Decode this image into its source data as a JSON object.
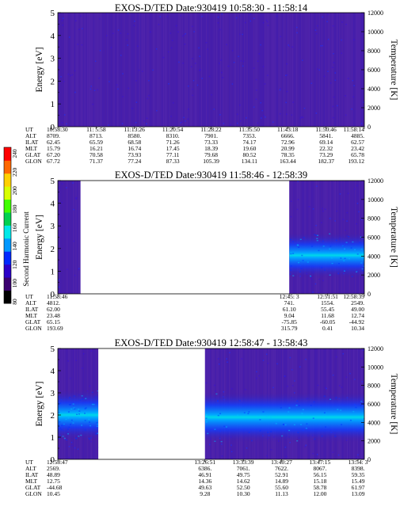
{
  "colorbar": {
    "label": "Second Harmonic Current",
    "ticks": [
      "80",
      "100",
      "120",
      "140",
      "160",
      "180",
      "200",
      "220",
      "240"
    ],
    "colors": [
      "#000000",
      "#3a0070",
      "#2b00c8",
      "#0028ff",
      "#0098ff",
      "#00e8e8",
      "#00d050",
      "#40ff00",
      "#d8ff00",
      "#ffd000",
      "#ff6800",
      "#ff0000"
    ]
  },
  "chart_data": [
    {
      "type": "heatmap",
      "title": "EXOS-D/TED   Date:930419   10:58:30 - 11:58:14",
      "ylabel": "Energy [eV]",
      "ylabel_right": "Temperature [K]",
      "ylim": [
        0,
        5
      ],
      "yticks": [
        "0",
        "1",
        "2",
        "3",
        "4",
        "5"
      ],
      "ylim_right": [
        0,
        12000
      ],
      "yticks_right": [
        "0",
        "2000",
        "4000",
        "6000",
        "8000",
        "10000",
        "12000"
      ],
      "data_spans": [
        [
          0,
          1
        ]
      ],
      "background": "#4a20a8",
      "ephemeris": {
        "labels": [
          "UT",
          "ALT",
          "ILAT",
          "MLT",
          "GLAT",
          "GLON"
        ],
        "columns": [
          {
            "UT": "10:58:30",
            "ALT": "8709.",
            "ILAT": "62.45",
            "MLT": "15.79",
            "GLAT": "67.20",
            "GLON": "67.72"
          },
          {
            "UT": "11: 5:58",
            "ALT": "8713.",
            "ILAT": "65.59",
            "MLT": "16.21",
            "GLAT": "70.58",
            "GLON": "71.37"
          },
          {
            "UT": "11:13:26",
            "ALT": "8580.",
            "ILAT": "68.58",
            "MLT": "16.74",
            "GLAT": "73.93",
            "GLON": "77.24"
          },
          {
            "UT": "11:20:54",
            "ALT": "8310.",
            "ILAT": "71.26",
            "MLT": "17.45",
            "GLAT": "77.11",
            "GLON": "87.33"
          },
          {
            "UT": "11:28:22",
            "ALT": "7901.",
            "ILAT": "73.33",
            "MLT": "18.39",
            "GLAT": "79.68",
            "GLON": "105.39"
          },
          {
            "UT": "11:35:50",
            "ALT": "7353.",
            "ILAT": "74.17",
            "MLT": "19.60",
            "GLAT": "80.52",
            "GLON": "134.11"
          },
          {
            "UT": "11:43:18",
            "ALT": "6666.",
            "ILAT": "72.96",
            "MLT": "20.99",
            "GLAT": "78.35",
            "GLON": "163.44"
          },
          {
            "UT": "11:50:46",
            "ALT": "5841.",
            "ILAT": "69.14",
            "MLT": "22.32",
            "GLAT": "73.29",
            "GLON": "182.37"
          },
          {
            "UT": "11:58:14",
            "ALT": "4885.",
            "ILAT": "62.57",
            "MLT": "23.42",
            "GLAT": "65.78",
            "GLON": "193.12"
          }
        ]
      }
    },
    {
      "type": "heatmap",
      "title": "EXOS-D/TED   Date:930419   11:58:46 - 12:58:39",
      "ylabel": "Energy [eV]",
      "ylabel_right": "Temperature [K]",
      "ylim": [
        0,
        5
      ],
      "yticks": [
        "0",
        "1",
        "2",
        "3",
        "4",
        "5"
      ],
      "ylim_right": [
        0,
        12000
      ],
      "yticks_right": [
        "0",
        "2000",
        "4000",
        "6000",
        "8000",
        "10000",
        "12000"
      ],
      "data_spans": [
        [
          0,
          0.074
        ],
        [
          0.755,
          1
        ]
      ],
      "background": "#4a20a8",
      "band": {
        "span": [
          0.755,
          1
        ],
        "energy_center": 1.7,
        "energy_width": 0.7
      },
      "ephemeris": {
        "labels": [
          "UT",
          "ALT",
          "ILAT",
          "MLT",
          "GLAT",
          "GLON"
        ],
        "columns": [
          {
            "UT": "11:58:46",
            "ALT": "4812.",
            "ILAT": "62.00",
            "MLT": "23.48",
            "GLAT": "65.15",
            "GLON": "193.69"
          },
          {
            "UT": "12:45: 3",
            "ALT": "741.",
            "ILAT": "61.10",
            "MLT": "9.04",
            "GLAT": "-75.85",
            "GLON": "315.79"
          },
          {
            "UT": "12:51:51",
            "ALT": "1554.",
            "ILAT": "55.45",
            "MLT": "11.68",
            "GLAT": "-60.05",
            "GLON": "0.41"
          },
          {
            "UT": "12:58:39",
            "ALT": "2549.",
            "ILAT": "49.00",
            "MLT": "12.74",
            "GLAT": "-44.92",
            "GLON": "10.34"
          }
        ]
      }
    },
    {
      "type": "heatmap",
      "title": "EXOS-D/TED   Date:930419   12:58:47 - 13:58:43",
      "ylabel": "Energy [eV]",
      "ylabel_right": "Temperature [K]",
      "ylim": [
        0,
        5
      ],
      "yticks": [
        "0",
        "1",
        "2",
        "3",
        "4",
        "5"
      ],
      "ylim_right": [
        0,
        12000
      ],
      "yticks_right": [
        "0",
        "2000",
        "4000",
        "6000",
        "8000",
        "10000",
        "12000"
      ],
      "data_spans": [
        [
          0,
          0.132
        ],
        [
          0.48,
          1
        ]
      ],
      "background": "#4a20a8",
      "band": {
        "span": [
          0,
          0.132
        ],
        "energy_center": 2.0,
        "energy_width": 0.8
      },
      "band2": {
        "span": [
          0.48,
          1
        ],
        "energy_center": 1.9,
        "energy_width": 0.8
      },
      "ephemeris": {
        "labels": [
          "UT",
          "ALT",
          "ILAT",
          "MLT",
          "GLAT",
          "GLON"
        ],
        "columns": [
          {
            "UT": "12:58:47",
            "ALT": "2569.",
            "ILAT": "48.89",
            "MLT": "12.75",
            "GLAT": "-44.68",
            "GLON": "10.45"
          },
          {
            "UT": "13:26:51",
            "ALT": "6386.",
            "ILAT": "46.91",
            "MLT": "14.36",
            "GLAT": "49.63",
            "GLON": "9.28"
          },
          {
            "UT": "13:33:39",
            "ALT": "7061.",
            "ILAT": "49.75",
            "MLT": "14.62",
            "GLAT": "52.50",
            "GLON": "10.30"
          },
          {
            "UT": "13:40:27",
            "ALT": "7622.",
            "ILAT": "52.91",
            "MLT": "14.89",
            "GLAT": "55.60",
            "GLON": "11.13"
          },
          {
            "UT": "13:47:15",
            "ALT": "8067.",
            "ILAT": "56.15",
            "MLT": "15.18",
            "GLAT": "58.78",
            "GLON": "12.00"
          },
          {
            "UT": "13:54: 3",
            "ALT": "8398.",
            "ILAT": "59.35",
            "MLT": "15.49",
            "GLAT": "61.97",
            "GLON": "13.09"
          }
        ]
      }
    }
  ]
}
